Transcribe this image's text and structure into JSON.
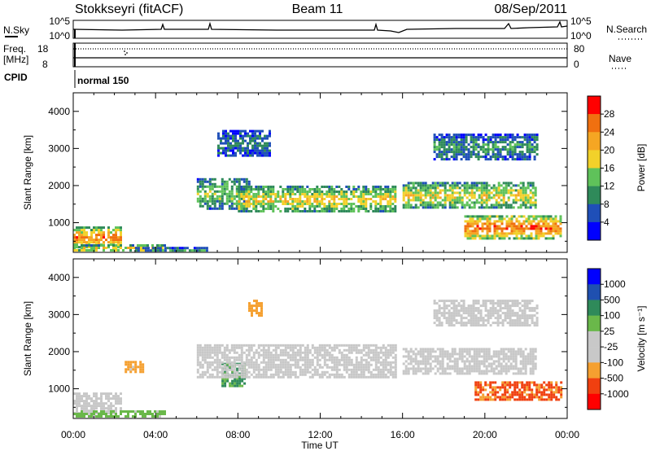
{
  "header": {
    "station": "Stokkseyri (fitACF)",
    "beam": "Beam 11",
    "date": "08/Sep/2011"
  },
  "top_panel": {
    "left_label": "N.Sky",
    "left_ticks": [
      "10^5",
      "10^0"
    ],
    "right_ticks": [
      "10^5",
      "10^0"
    ],
    "right_label": "N.Search"
  },
  "freq_panel": {
    "left_label_line1": "Freq.",
    "left_label_line2": "[MHz]",
    "left_ticks": [
      "18",
      "8"
    ],
    "right_ticks": [
      "80",
      "0"
    ],
    "right_label": "Nave"
  },
  "cpid_panel": {
    "label": "CPID",
    "mode": "normal 150"
  },
  "colors": {
    "power_scale": [
      "#0000ff",
      "#1f4fb8",
      "#2f8a5a",
      "#5fc25a",
      "#f2d12a",
      "#f5a623",
      "#f07010",
      "#ff0000"
    ],
    "velocity_scale": [
      "#ff0000",
      "#f04010",
      "#f5a030",
      "#c8c8c8",
      "#c8c8c8",
      "#6ab84a",
      "#2f8a5a",
      "#1f50b0",
      "#0000ff"
    ],
    "ground_scatter": "#c8c8c8"
  },
  "chart_data": [
    {
      "type": "heatmap",
      "name": "power",
      "ylabel": "Slant Range [km]",
      "yticks": [
        "1000",
        "2000",
        "3000",
        "4000"
      ],
      "ylim": [
        200,
        4500
      ],
      "xlim_hours": [
        0,
        24
      ],
      "colorbar_label": "Power [dB]",
      "colorbar_ticks": [
        "4",
        "8",
        "12",
        "16",
        "20",
        "24",
        "28"
      ],
      "colorbar_range": [
        0,
        32
      ],
      "regions": [
        {
          "t0": 0.0,
          "t1": 2.3,
          "r0": 350,
          "r1": 900,
          "level": 24
        },
        {
          "t0": 0.0,
          "t1": 4.5,
          "r0": 250,
          "r1": 420,
          "level": 20
        },
        {
          "t0": 3.0,
          "t1": 6.5,
          "r0": 250,
          "r1": 350,
          "level": 12
        },
        {
          "t0": 6.0,
          "t1": 8.5,
          "r0": 1400,
          "r1": 2200,
          "level": 14
        },
        {
          "t0": 8.0,
          "t1": 15.7,
          "r0": 1300,
          "r1": 2000,
          "level": 18
        },
        {
          "t0": 16.0,
          "t1": 22.5,
          "r0": 1400,
          "r1": 2100,
          "level": 18
        },
        {
          "t0": 19.0,
          "t1": 23.7,
          "r0": 600,
          "r1": 1200,
          "level": 26
        },
        {
          "t0": 17.5,
          "t1": 22.5,
          "r0": 2700,
          "r1": 3400,
          "level": 10
        },
        {
          "t0": 7.0,
          "t1": 9.5,
          "r0": 2800,
          "r1": 3500,
          "level": 8
        }
      ]
    },
    {
      "type": "heatmap",
      "name": "velocity",
      "ylabel": "Slant Range [km]",
      "yticks": [
        "1000",
        "2000",
        "3000",
        "4000"
      ],
      "ylim": [
        200,
        4500
      ],
      "xlabel": "Time UT",
      "xticks": [
        "00:00",
        "04:00",
        "08:00",
        "12:00",
        "16:00",
        "20:00",
        "00:00"
      ],
      "xlim_hours": [
        0,
        24
      ],
      "colorbar_label": "Velocity [m s⁻¹]",
      "colorbar_ticks": [
        "1000",
        "500",
        "100",
        "25",
        "-25",
        "-100",
        "-500",
        "-1000"
      ],
      "regions": [
        {
          "t0": 0.0,
          "t1": 2.3,
          "r0": 350,
          "r1": 900,
          "velocity": 0,
          "ground_scatter": true
        },
        {
          "t0": 0.0,
          "t1": 4.5,
          "r0": 250,
          "r1": 420,
          "velocity": 60
        },
        {
          "t0": 2.5,
          "t1": 3.4,
          "r0": 1450,
          "r1": 1750,
          "velocity": -150
        },
        {
          "t0": 7.2,
          "t1": 8.3,
          "r0": 1100,
          "r1": 1700,
          "velocity": 120
        },
        {
          "t0": 6.0,
          "t1": 15.7,
          "r0": 1300,
          "r1": 2200,
          "velocity": 0,
          "ground_scatter": true
        },
        {
          "t0": 16.0,
          "t1": 22.5,
          "r0": 1400,
          "r1": 2100,
          "velocity": 0,
          "ground_scatter": true
        },
        {
          "t0": 19.5,
          "t1": 23.7,
          "r0": 700,
          "r1": 1200,
          "velocity": -600
        },
        {
          "t0": 8.5,
          "t1": 9.2,
          "r0": 3000,
          "r1": 3400,
          "velocity": -200
        },
        {
          "t0": 17.5,
          "t1": 22.5,
          "r0": 2700,
          "r1": 3400,
          "velocity": 0,
          "ground_scatter": true
        }
      ]
    }
  ]
}
